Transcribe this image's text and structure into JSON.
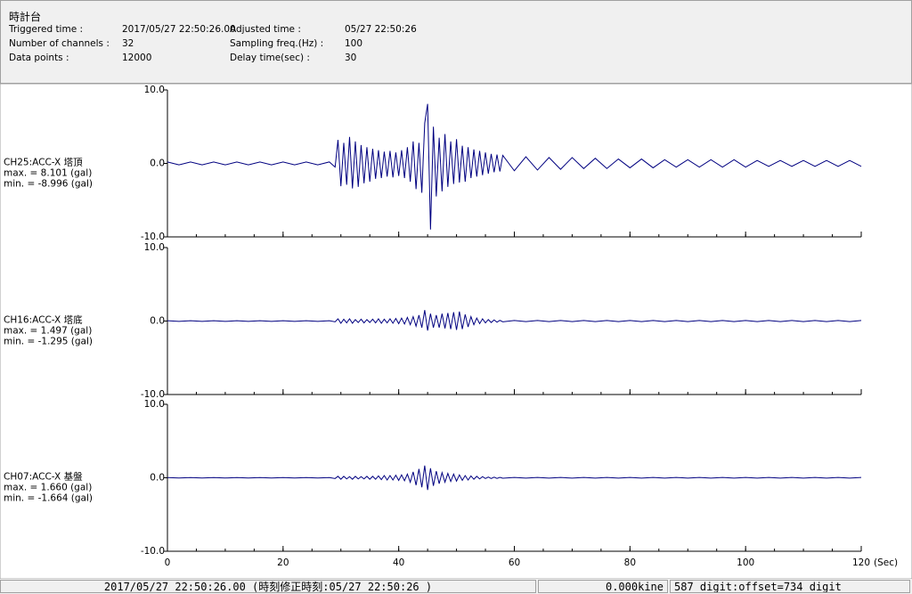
{
  "header": {
    "title": "時計台",
    "fields": [
      {
        "label": "Triggered time :",
        "value": "2017/05/27 22:50:26.00"
      },
      {
        "label": "Adjusted time :",
        "value": "05/27 22:50:26"
      },
      {
        "label": "Number of channels :",
        "value": "32"
      },
      {
        "label": "Sampling freq.(Hz) :",
        "value": "100"
      },
      {
        "label": "Data points :",
        "value": "12000"
      },
      {
        "label": "Delay time(sec) :",
        "value": "30"
      }
    ]
  },
  "chart_data": [
    {
      "type": "line",
      "title": "CH25:ACC-X 塔頂",
      "max_label": "max. = 8.101 (gal)",
      "min_label": "min. = -8.996 (gal)",
      "color": "#000080",
      "xlim": [
        0,
        120
      ],
      "ylim": [
        -10,
        10
      ],
      "yticks": [
        {
          "value": 10,
          "label": "10.0"
        },
        {
          "value": 0,
          "label": "0.0"
        },
        {
          "value": -10,
          "label": "-10.0"
        }
      ],
      "xticks": [
        0,
        20,
        40,
        60,
        80,
        100,
        120
      ],
      "xminorticks": [
        0,
        5,
        10,
        15,
        20,
        25,
        30,
        35,
        40,
        45,
        50,
        55,
        60,
        65,
        70,
        75,
        80,
        85,
        90,
        95,
        100,
        105,
        110,
        115,
        120
      ],
      "show_xtick_labels": false,
      "x": [
        0,
        2,
        4,
        6,
        8,
        10,
        12,
        14,
        16,
        18,
        20,
        22,
        24,
        26,
        28,
        29,
        29.5,
        30,
        30.5,
        31,
        31.5,
        32,
        32.5,
        33,
        33.5,
        34,
        34.5,
        35,
        35.5,
        36,
        36.5,
        37,
        37.5,
        38,
        38.5,
        39,
        39.5,
        40,
        40.5,
        41,
        41.5,
        42,
        42.5,
        43,
        43.5,
        44,
        44.5,
        45,
        45.5,
        46,
        46.5,
        47,
        47.5,
        48,
        48.5,
        49,
        49.5,
        50,
        50.5,
        51,
        51.5,
        52,
        52.5,
        53,
        53.5,
        54,
        54.5,
        55,
        55.5,
        56,
        56.5,
        57,
        57.5,
        58,
        60,
        62,
        64,
        66,
        68,
        70,
        72,
        74,
        76,
        78,
        80,
        82,
        84,
        86,
        88,
        90,
        92,
        94,
        96,
        98,
        100,
        102,
        104,
        106,
        108,
        110,
        112,
        114,
        116,
        118,
        120
      ],
      "values": [
        0.2,
        -0.2,
        0.2,
        -0.2,
        0.2,
        -0.2,
        0.2,
        -0.2,
        0.2,
        -0.2,
        0.2,
        -0.2,
        0.2,
        -0.2,
        0.2,
        -0.5,
        3.2,
        -3.1,
        2.8,
        -2.9,
        3.6,
        -3.4,
        3.0,
        -3.2,
        2.5,
        -2.7,
        2.2,
        -2.5,
        2.0,
        -2.1,
        1.8,
        -2.0,
        1.6,
        -1.8,
        1.7,
        -1.9,
        1.5,
        -1.7,
        1.8,
        -2.0,
        2.2,
        -2.5,
        3.0,
        -3.5,
        2.8,
        -4.0,
        5.5,
        8.101,
        -8.996,
        5.0,
        -4.5,
        3.5,
        -3.8,
        4.0,
        -3.2,
        3.0,
        -2.8,
        3.3,
        -2.6,
        2.4,
        -2.5,
        2.2,
        -2.0,
        1.9,
        -1.8,
        1.7,
        -1.6,
        1.5,
        -1.4,
        1.3,
        -1.2,
        1.2,
        -1.1,
        1.1,
        -1.0,
        0.9,
        -0.9,
        0.8,
        -0.8,
        0.8,
        -0.7,
        0.7,
        -0.7,
        0.6,
        -0.6,
        0.6,
        -0.6,
        0.5,
        -0.5,
        0.5,
        -0.5,
        0.5,
        -0.5,
        0.5,
        -0.5,
        0.4,
        -0.4,
        0.4,
        -0.4,
        0.4,
        -0.4,
        0.4,
        -0.4,
        0.4,
        -0.4
      ]
    },
    {
      "type": "line",
      "title": "CH16:ACC-X 塔底",
      "max_label": "max. = 1.497 (gal)",
      "min_label": "min. = -1.295 (gal)",
      "color": "#000080",
      "xlim": [
        0,
        120
      ],
      "ylim": [
        -10,
        10
      ],
      "yticks": [
        {
          "value": 10,
          "label": "10.0"
        },
        {
          "value": 0,
          "label": "0.0"
        },
        {
          "value": -10,
          "label": "-10.0"
        }
      ],
      "xticks": [
        0,
        20,
        40,
        60,
        80,
        100,
        120
      ],
      "xminorticks": [
        0,
        5,
        10,
        15,
        20,
        25,
        30,
        35,
        40,
        45,
        50,
        55,
        60,
        65,
        70,
        75,
        80,
        85,
        90,
        95,
        100,
        105,
        110,
        115,
        120
      ],
      "show_xtick_labels": false,
      "x": [
        0,
        2,
        4,
        6,
        8,
        10,
        12,
        14,
        16,
        18,
        20,
        22,
        24,
        26,
        28,
        29,
        29.5,
        30,
        30.5,
        31,
        31.5,
        32,
        32.5,
        33,
        33.5,
        34,
        34.5,
        35,
        35.5,
        36,
        36.5,
        37,
        37.5,
        38,
        38.5,
        39,
        39.5,
        40,
        40.5,
        41,
        41.5,
        42,
        42.5,
        43,
        43.5,
        44,
        44.5,
        45,
        45.5,
        46,
        46.5,
        47,
        47.5,
        48,
        48.5,
        49,
        49.5,
        50,
        50.5,
        51,
        51.5,
        52,
        52.5,
        53,
        53.5,
        54,
        54.5,
        55,
        55.5,
        56,
        56.5,
        57,
        57.5,
        58,
        60,
        62,
        64,
        66,
        68,
        70,
        72,
        74,
        76,
        78,
        80,
        82,
        84,
        86,
        88,
        90,
        92,
        94,
        96,
        98,
        100,
        102,
        104,
        106,
        108,
        110,
        112,
        114,
        116,
        118,
        120
      ],
      "values": [
        0.05,
        -0.05,
        0.05,
        -0.05,
        0.05,
        -0.05,
        0.05,
        -0.05,
        0.05,
        -0.05,
        0.05,
        -0.05,
        0.05,
        -0.05,
        0.05,
        -0.1,
        0.3,
        -0.3,
        0.25,
        -0.25,
        0.3,
        -0.3,
        0.2,
        -0.2,
        0.25,
        -0.25,
        0.2,
        -0.2,
        0.25,
        -0.25,
        0.3,
        -0.3,
        0.25,
        -0.25,
        0.3,
        -0.3,
        0.35,
        -0.35,
        0.4,
        -0.4,
        0.5,
        -0.5,
        0.6,
        -0.7,
        0.8,
        -0.9,
        1.497,
        -1.295,
        1.0,
        -0.9,
        0.8,
        -0.9,
        1.0,
        -1.0,
        1.1,
        -1.1,
        1.2,
        -1.2,
        1.3,
        -1.1,
        0.9,
        -0.8,
        0.6,
        -0.5,
        0.4,
        -0.35,
        0.3,
        -0.25,
        0.2,
        -0.2,
        0.15,
        -0.15,
        0.1,
        -0.1,
        0.08,
        -0.08,
        0.08,
        -0.08,
        0.08,
        -0.08,
        0.08,
        -0.08,
        0.08,
        -0.08,
        0.08,
        -0.08,
        0.08,
        -0.08,
        0.08,
        -0.08,
        0.08,
        -0.08,
        0.08,
        -0.08,
        0.08,
        -0.08,
        0.08,
        -0.08,
        0.08,
        -0.08,
        0.08,
        -0.08,
        0.08,
        -0.08,
        0.08
      ]
    },
    {
      "type": "line",
      "title": "CH07:ACC-X 基盤",
      "max_label": "max. = 1.660 (gal)",
      "min_label": "min. = -1.664 (gal)",
      "color": "#000080",
      "xlim": [
        0,
        120
      ],
      "ylim": [
        -10,
        10
      ],
      "yticks": [
        {
          "value": 10,
          "label": "10.0"
        },
        {
          "value": 0,
          "label": "0.0"
        },
        {
          "value": -10,
          "label": "-10.0"
        }
      ],
      "xticks": [
        0,
        20,
        40,
        60,
        80,
        100,
        120
      ],
      "xminorticks": [
        0,
        5,
        10,
        15,
        20,
        25,
        30,
        35,
        40,
        45,
        50,
        55,
        60,
        65,
        70,
        75,
        80,
        85,
        90,
        95,
        100,
        105,
        110,
        115,
        120
      ],
      "show_xtick_labels": true,
      "xlabel": "(Sec)",
      "x": [
        0,
        2,
        4,
        6,
        8,
        10,
        12,
        14,
        16,
        18,
        20,
        22,
        24,
        26,
        28,
        29,
        29.5,
        30,
        30.5,
        31,
        31.5,
        32,
        32.5,
        33,
        33.5,
        34,
        34.5,
        35,
        35.5,
        36,
        36.5,
        37,
        37.5,
        38,
        38.5,
        39,
        39.5,
        40,
        40.5,
        41,
        41.5,
        42,
        42.5,
        43,
        43.5,
        44,
        44.5,
        45,
        45.5,
        46,
        46.5,
        47,
        47.5,
        48,
        48.5,
        49,
        49.5,
        50,
        50.5,
        51,
        51.5,
        52,
        52.5,
        53,
        53.5,
        54,
        54.5,
        55,
        55.5,
        56,
        56.5,
        57,
        57.5,
        58,
        60,
        62,
        64,
        66,
        68,
        70,
        72,
        74,
        76,
        78,
        80,
        82,
        84,
        86,
        88,
        90,
        92,
        94,
        96,
        98,
        100,
        102,
        104,
        106,
        108,
        110,
        112,
        114,
        116,
        118,
        120
      ],
      "values": [
        0.03,
        -0.03,
        0.03,
        -0.03,
        0.03,
        -0.03,
        0.03,
        -0.03,
        0.03,
        -0.03,
        0.03,
        -0.03,
        0.03,
        -0.03,
        0.03,
        -0.1,
        0.2,
        -0.2,
        0.2,
        -0.15,
        0.15,
        -0.2,
        0.2,
        -0.15,
        0.15,
        -0.15,
        0.2,
        -0.2,
        0.2,
        -0.2,
        0.25,
        -0.25,
        0.3,
        -0.3,
        0.3,
        -0.3,
        0.35,
        -0.35,
        0.4,
        -0.4,
        0.5,
        -0.6,
        0.8,
        -1.0,
        1.2,
        -1.3,
        1.66,
        -1.664,
        1.3,
        -1.1,
        0.9,
        -0.8,
        0.7,
        -0.6,
        0.6,
        -0.5,
        0.5,
        -0.45,
        0.4,
        -0.35,
        0.3,
        -0.3,
        0.25,
        -0.2,
        0.2,
        -0.15,
        0.15,
        -0.1,
        0.1,
        -0.1,
        0.08,
        -0.08,
        0.06,
        -0.06,
        0.04,
        -0.04,
        0.04,
        -0.04,
        0.04,
        -0.04,
        0.04,
        -0.04,
        0.04,
        -0.04,
        0.04,
        -0.04,
        0.04,
        -0.04,
        0.04,
        -0.04,
        0.04,
        -0.04,
        0.04,
        -0.04,
        0.04,
        -0.04,
        0.04,
        -0.04,
        0.04,
        -0.04,
        0.04,
        -0.04,
        0.04,
        -0.04,
        0.04
      ]
    }
  ],
  "status_bar": [
    "2017/05/27 22:50:26.00  (時刻修正時刻:05/27 22:50:26  )",
    "0.000kine",
    "587 digit:offset=734 digit"
  ]
}
